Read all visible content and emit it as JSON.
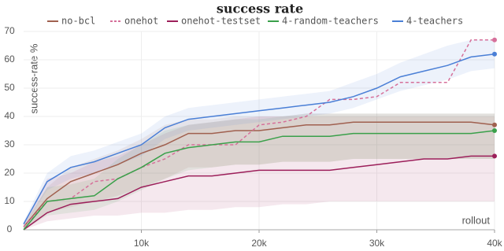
{
  "chart_data": {
    "type": "line",
    "title": "success rate",
    "y_label": "success-rate %",
    "x_label": "rollout",
    "x": [
      0,
      2000,
      4000,
      6000,
      8000,
      10000,
      12000,
      14000,
      16000,
      18000,
      20000,
      22000,
      24000,
      26000,
      28000,
      30000,
      32000,
      34000,
      36000,
      38000,
      40000
    ],
    "xlim": [
      0,
      40000
    ],
    "ylim": [
      0,
      70
    ],
    "xticks": [
      {
        "value": 10000,
        "label": "10k"
      },
      {
        "value": 20000,
        "label": "20k"
      },
      {
        "value": 30000,
        "label": "30k"
      },
      {
        "value": 40000,
        "label": "40k"
      }
    ],
    "yticks": [
      0,
      10,
      20,
      30,
      40,
      50,
      60,
      70
    ],
    "grid": true,
    "series": [
      {
        "name": "no-bcl",
        "color": "#a0604f",
        "dashed": false,
        "values": [
          1,
          11,
          17,
          20,
          23,
          27,
          30,
          34,
          34,
          35,
          35,
          36,
          37,
          37,
          38,
          38,
          38,
          38,
          38,
          38,
          37
        ],
        "lower": [
          0,
          6,
          8,
          10,
          12,
          15,
          18,
          22,
          22,
          23,
          23,
          24,
          24,
          24,
          25,
          25,
          25,
          25,
          25,
          25,
          25
        ],
        "upper": [
          2,
          15,
          22,
          25,
          28,
          32,
          37,
          39,
          39,
          40,
          40,
          40,
          40,
          40,
          40,
          40,
          40,
          40,
          40,
          40,
          40
        ]
      },
      {
        "name": "onehot",
        "color": "#d6709a",
        "dashed": true,
        "values": [
          1,
          10,
          11,
          17,
          18,
          22,
          25,
          30,
          30,
          30,
          37,
          38,
          40,
          46,
          46,
          47,
          52,
          52,
          52,
          67,
          67
        ]
      },
      {
        "name": "onehot-testset",
        "color": "#9c1f5a",
        "dashed": false,
        "values": [
          0,
          6,
          9,
          10,
          11,
          15,
          17,
          19,
          19,
          20,
          21,
          21,
          21,
          21,
          22,
          23,
          24,
          25,
          25,
          26,
          26
        ],
        "lower": [
          0,
          3,
          4,
          5,
          5,
          6,
          6,
          7,
          7,
          8,
          8,
          9,
          9,
          10,
          10,
          10,
          10,
          10,
          10,
          10,
          10
        ],
        "upper": [
          2,
          18,
          20,
          24,
          26,
          30,
          34,
          37,
          38,
          39,
          40,
          40,
          41,
          41,
          41,
          41,
          41,
          41,
          41,
          41,
          41
        ]
      },
      {
        "name": "4-random-teachers",
        "color": "#3aa04a",
        "dashed": false,
        "values": [
          0,
          10,
          11,
          12,
          18,
          22,
          27,
          29,
          30,
          31,
          31,
          33,
          33,
          33,
          34,
          34,
          34,
          34,
          34,
          34,
          35
        ],
        "lower": [
          0,
          5,
          6,
          7,
          10,
          14,
          18,
          21,
          22,
          23,
          23,
          24,
          24,
          24,
          25,
          25,
          25,
          25,
          25,
          25,
          25
        ],
        "upper": [
          1,
          15,
          16,
          18,
          25,
          30,
          35,
          37,
          38,
          39,
          39,
          40,
          41,
          41,
          41,
          41,
          41,
          41,
          41,
          41,
          41
        ]
      },
      {
        "name": "4-teachers",
        "color": "#4a7fd6",
        "dashed": false,
        "values": [
          2,
          17,
          22,
          24,
          27,
          30,
          36,
          39,
          40,
          41,
          42,
          43,
          44,
          45,
          47,
          50,
          54,
          56,
          58,
          61,
          62
        ],
        "lower": [
          1,
          14,
          18,
          20,
          23,
          26,
          32,
          35,
          36,
          37,
          38,
          39,
          40,
          41,
          43,
          46,
          49,
          51,
          53,
          56,
          57
        ],
        "upper": [
          3,
          20,
          26,
          28,
          31,
          34,
          40,
          43,
          44,
          45,
          46,
          47,
          48,
          49,
          52,
          55,
          59,
          62,
          65,
          67,
          67
        ]
      }
    ]
  }
}
